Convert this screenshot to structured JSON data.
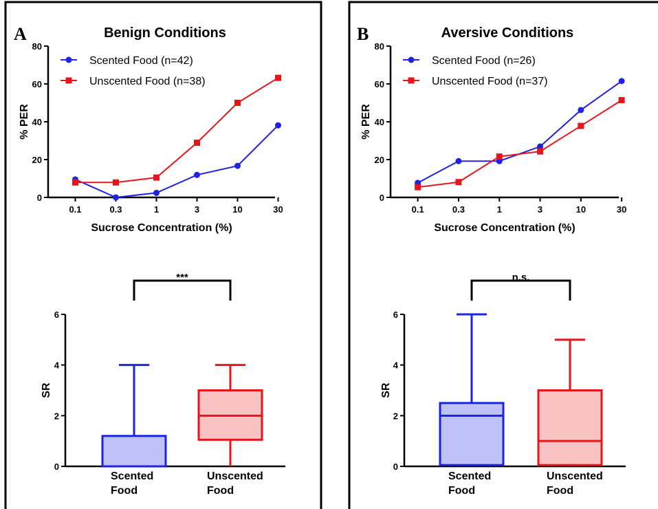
{
  "colors": {
    "blue": "#1f22e0",
    "red": "#e8141a",
    "blue_fill": "#bfc2f7",
    "red_fill": "#f9c3c3"
  },
  "panels": [
    {
      "letter": "A",
      "title": "Benign Conditions",
      "line_chart": {
        "type": "line",
        "xlabel": "Sucrose Concentration (%)",
        "ylabel": "% PER",
        "categories": [
          "0.1",
          "0.3",
          "1",
          "3",
          "10",
          "30"
        ],
        "ylim": [
          0,
          80
        ],
        "yticks": [
          "0",
          "20",
          "40",
          "60",
          "80"
        ],
        "legend_position": "top-left",
        "series": [
          {
            "name": "Scented Food (n=42)",
            "color": "blue",
            "marker": "circle",
            "values": [
              9.5,
              0,
              2.4,
              11.9,
              16.7,
              38.1
            ]
          },
          {
            "name": "Unscented Food (n=38)",
            "color": "red",
            "marker": "square",
            "values": [
              7.9,
              7.9,
              10.5,
              28.9,
              50.0,
              63.2
            ]
          }
        ]
      },
      "box_chart": {
        "type": "box",
        "ylabel": "SR",
        "ylim": [
          0,
          6
        ],
        "yticks": [
          "0",
          "2",
          "4",
          "6"
        ],
        "significance": "***",
        "boxes": [
          {
            "label_line1": "Scented",
            "label_line2": "Food",
            "color": "blue",
            "min": 0,
            "q1": 0,
            "median": 0,
            "q3": 1.2,
            "max": 4
          },
          {
            "label_line1": "Unscented",
            "label_line2": "Food",
            "color": "red",
            "min": 0,
            "q1": 1.05,
            "median": 2,
            "q3": 3,
            "max": 4
          }
        ]
      }
    },
    {
      "letter": "B",
      "title": "Aversive Conditions",
      "line_chart": {
        "type": "line",
        "xlabel": "Sucrose Concentration (%)",
        "ylabel": "% PER",
        "categories": [
          "0.1",
          "0.3",
          "1",
          "3",
          "10",
          "30"
        ],
        "ylim": [
          0,
          80
        ],
        "yticks": [
          "0",
          "20",
          "40",
          "60",
          "80"
        ],
        "legend_position": "top-left",
        "series": [
          {
            "name": "Scented Food (n=26)",
            "color": "blue",
            "marker": "circle",
            "values": [
              7.7,
              19.2,
              19.2,
              26.9,
              46.2,
              61.5
            ]
          },
          {
            "name": "Unscented Food (n=37)",
            "color": "red",
            "marker": "square",
            "values": [
              5.4,
              8.1,
              21.6,
              24.3,
              37.8,
              51.4
            ]
          }
        ]
      },
      "box_chart": {
        "type": "box",
        "ylabel": "SR",
        "ylim": [
          0,
          6
        ],
        "yticks": [
          "0",
          "2",
          "4",
          "6"
        ],
        "significance": "n.s.",
        "boxes": [
          {
            "label_line1": "Scented",
            "label_line2": "Food",
            "color": "blue",
            "min": 0,
            "q1": 0.05,
            "median": 2,
            "q3": 2.5,
            "max": 6
          },
          {
            "label_line1": "Unscented",
            "label_line2": "Food",
            "color": "red",
            "min": 0,
            "q1": 0.05,
            "median": 1,
            "q3": 3,
            "max": 5
          }
        ]
      }
    }
  ]
}
